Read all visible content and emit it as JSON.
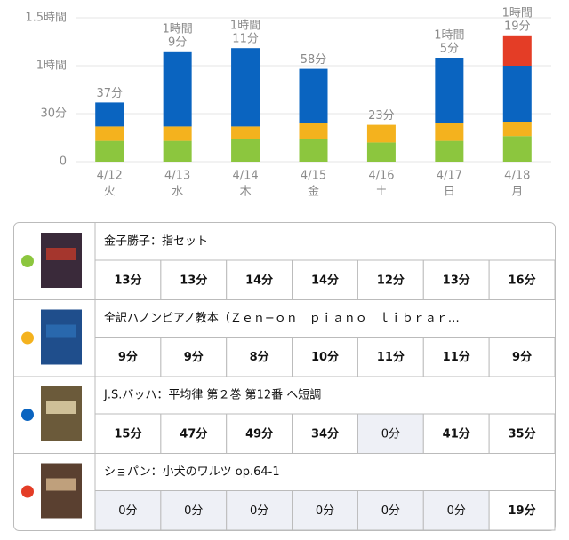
{
  "chart_data": {
    "type": "bar",
    "stacked": true,
    "categories": [
      "4/12",
      "4/13",
      "4/14",
      "4/15",
      "4/16",
      "4/17",
      "4/18"
    ],
    "weekdays": [
      "火",
      "水",
      "木",
      "金",
      "土",
      "日",
      "月"
    ],
    "ylim": [
      0,
      90
    ],
    "yticks": [
      0,
      {
        "value": 30,
        "label": "30分"
      },
      {
        "value": 60,
        "label": "1時間"
      },
      {
        "value": 90,
        "label": "1.5時間"
      }
    ],
    "grid": true,
    "total_labels": [
      [
        "37分"
      ],
      [
        "1時間",
        "9分"
      ],
      [
        "1時間",
        "11分"
      ],
      [
        "58分"
      ],
      [
        "23分"
      ],
      [
        "1時間",
        "5分"
      ],
      [
        "1時間",
        "19分"
      ]
    ],
    "series": [
      {
        "name": "金子勝子：指セット",
        "color": "#8cc63e",
        "values": [
          13,
          13,
          14,
          14,
          12,
          13,
          16
        ],
        "value_labels": [
          "13分",
          "13分",
          "14分",
          "14分",
          "12分",
          "13分",
          "16分"
        ]
      },
      {
        "name": "全訳ハノンピアノ教本（Ｚｅｎ−ｏｎ　ｐｉａｎｏ　ｌｉｂｒａｒ…",
        "color": "#f4b21e",
        "values": [
          9,
          9,
          8,
          10,
          11,
          11,
          9
        ],
        "value_labels": [
          "9分",
          "9分",
          "8分",
          "10分",
          "11分",
          "11分",
          "9分"
        ]
      },
      {
        "name": "J.S.バッハ：平均律 第２巻 第12番 ヘ短調",
        "color": "#0a64c0",
        "values": [
          15,
          47,
          49,
          34,
          0,
          41,
          35
        ],
        "value_labels": [
          "15分",
          "47分",
          "49分",
          "34分",
          "0分",
          "41分",
          "35分"
        ]
      },
      {
        "name": "ショパン：小犬のワルツ op.64-1",
        "color": "#e43d26",
        "values": [
          0,
          0,
          0,
          0,
          0,
          0,
          19
        ],
        "value_labels": [
          "0分",
          "0分",
          "0分",
          "0分",
          "0分",
          "0分",
          "19分"
        ]
      }
    ]
  }
}
